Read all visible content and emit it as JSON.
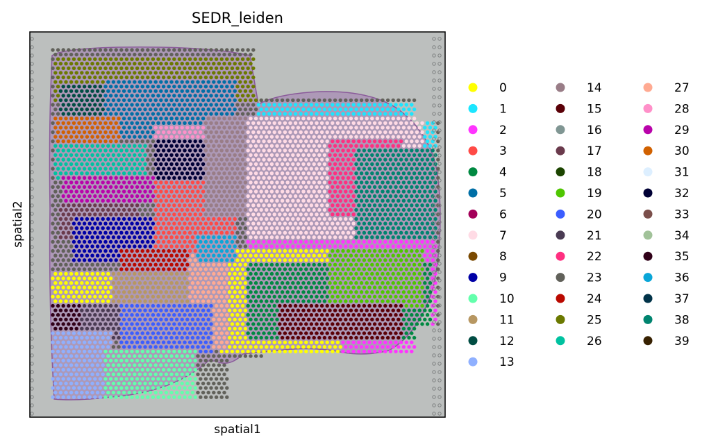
{
  "chart_data": {
    "type": "scatter",
    "title": "SEDR_leiden",
    "xlabel": "spatial1",
    "ylabel": "spatial2",
    "xticks": [],
    "yticks": [],
    "legend_position": "right",
    "background": "H&E tissue section image (grey slide with purple-stained tissue)",
    "categories": [
      {
        "label": "0",
        "color": "#ffff00"
      },
      {
        "label": "1",
        "color": "#1ce6ff"
      },
      {
        "label": "2",
        "color": "#ff34ff"
      },
      {
        "label": "3",
        "color": "#ff4a46"
      },
      {
        "label": "4",
        "color": "#008941"
      },
      {
        "label": "5",
        "color": "#006fa6"
      },
      {
        "label": "6",
        "color": "#a30059"
      },
      {
        "label": "7",
        "color": "#ffdbe5"
      },
      {
        "label": "8",
        "color": "#7a4900"
      },
      {
        "label": "9",
        "color": "#0000a6"
      },
      {
        "label": "10",
        "color": "#63ffac"
      },
      {
        "label": "11",
        "color": "#b79762"
      },
      {
        "label": "12",
        "color": "#004d43"
      },
      {
        "label": "13",
        "color": "#8fb0ff"
      },
      {
        "label": "14",
        "color": "#997d87"
      },
      {
        "label": "15",
        "color": "#5a0007"
      },
      {
        "label": "16",
        "color": "#809693"
      },
      {
        "label": "17",
        "color": "#6a3a4c"
      },
      {
        "label": "18",
        "color": "#1b4400"
      },
      {
        "label": "19",
        "color": "#4fc601"
      },
      {
        "label": "20",
        "color": "#3b5dff"
      },
      {
        "label": "21",
        "color": "#4a3b53"
      },
      {
        "label": "22",
        "color": "#ff2f80"
      },
      {
        "label": "23",
        "color": "#61615a"
      },
      {
        "label": "24",
        "color": "#ba0900"
      },
      {
        "label": "25",
        "color": "#6b7900"
      },
      {
        "label": "26",
        "color": "#00c2a0"
      },
      {
        "label": "27",
        "color": "#ffaa92"
      },
      {
        "label": "28",
        "color": "#ff90c9"
      },
      {
        "label": "29",
        "color": "#b903aa"
      },
      {
        "label": "30",
        "color": "#d16100"
      },
      {
        "label": "31",
        "color": "#ddefff"
      },
      {
        "label": "32",
        "color": "#000035"
      },
      {
        "label": "33",
        "color": "#7b4f4b"
      },
      {
        "label": "34",
        "color": "#a1c299"
      },
      {
        "label": "35",
        "color": "#300018"
      },
      {
        "label": "36",
        "color": "#0aa6d8"
      },
      {
        "label": "37",
        "color": "#013349"
      },
      {
        "label": "38",
        "color": "#00846f"
      },
      {
        "label": "39",
        "color": "#372101"
      }
    ],
    "regions": [
      {
        "cluster": "25",
        "x": [
          0.06,
          0.55
        ],
        "y": [
          0.82,
          0.93
        ]
      },
      {
        "cluster": "5",
        "x": [
          0.18,
          0.5
        ],
        "y": [
          0.72,
          0.88
        ]
      },
      {
        "cluster": "12",
        "x": [
          0.07,
          0.18
        ],
        "y": [
          0.74,
          0.86
        ]
      },
      {
        "cluster": "30",
        "x": [
          0.06,
          0.22
        ],
        "y": [
          0.7,
          0.78
        ]
      },
      {
        "cluster": "26",
        "x": [
          0.06,
          0.28
        ],
        "y": [
          0.62,
          0.71
        ]
      },
      {
        "cluster": "28",
        "x": [
          0.3,
          0.42
        ],
        "y": [
          0.62,
          0.76
        ]
      },
      {
        "cluster": "32",
        "x": [
          0.3,
          0.55
        ],
        "y": [
          0.56,
          0.72
        ]
      },
      {
        "cluster": "29",
        "x": [
          0.08,
          0.3
        ],
        "y": [
          0.55,
          0.63
        ]
      },
      {
        "cluster": "17",
        "x": [
          0.07,
          0.26
        ],
        "y": [
          0.46,
          0.56
        ]
      },
      {
        "cluster": "9",
        "x": [
          0.1,
          0.34
        ],
        "y": [
          0.4,
          0.52
        ]
      },
      {
        "cluster": "3",
        "x": [
          0.3,
          0.5
        ],
        "y": [
          0.36,
          0.62
        ]
      },
      {
        "cluster": "24",
        "x": [
          0.22,
          0.38
        ],
        "y": [
          0.34,
          0.44
        ]
      },
      {
        "cluster": "14",
        "x": [
          0.42,
          0.58
        ],
        "y": [
          0.52,
          0.78
        ]
      },
      {
        "cluster": "6",
        "x": [
          0.58,
          0.82
        ],
        "y": [
          0.5,
          0.82
        ]
      },
      {
        "cluster": "1",
        "x": [
          0.55,
          0.98
        ],
        "y": [
          0.44,
          0.82
        ]
      },
      {
        "cluster": "7",
        "x": [
          0.52,
          0.95
        ],
        "y": [
          0.4,
          0.78
        ]
      },
      {
        "cluster": "22",
        "x": [
          0.72,
          0.9
        ],
        "y": [
          0.52,
          0.72
        ]
      },
      {
        "cluster": "38",
        "x": [
          0.78,
          0.98
        ],
        "y": [
          0.45,
          0.7
        ]
      },
      {
        "cluster": "2",
        "x": [
          0.52,
          0.98
        ],
        "y": [
          0.16,
          0.46
        ]
      },
      {
        "cluster": "0",
        "x": [
          0.45,
          0.75
        ],
        "y": [
          0.16,
          0.44
        ]
      },
      {
        "cluster": "4",
        "x": [
          0.52,
          0.97
        ],
        "y": [
          0.2,
          0.4
        ]
      },
      {
        "cluster": "19",
        "x": [
          0.72,
          0.95
        ],
        "y": [
          0.28,
          0.44
        ]
      },
      {
        "cluster": "15",
        "x": [
          0.6,
          0.9
        ],
        "y": [
          0.2,
          0.3
        ]
      },
      {
        "cluster": "0",
        "x": [
          0.05,
          0.2
        ],
        "y": [
          0.3,
          0.38
        ]
      },
      {
        "cluster": "35",
        "x": [
          0.05,
          0.14
        ],
        "y": [
          0.2,
          0.3
        ]
      },
      {
        "cluster": "11",
        "x": [
          0.2,
          0.42
        ],
        "y": [
          0.26,
          0.38
        ]
      },
      {
        "cluster": "27",
        "x": [
          0.38,
          0.48
        ],
        "y": [
          0.18,
          0.42
        ]
      },
      {
        "cluster": "36",
        "x": [
          0.4,
          0.5
        ],
        "y": [
          0.4,
          0.47
        ]
      },
      {
        "cluster": "21",
        "x": [
          0.12,
          0.24
        ],
        "y": [
          0.2,
          0.3
        ]
      },
      {
        "cluster": "20",
        "x": [
          0.22,
          0.44
        ],
        "y": [
          0.16,
          0.3
        ]
      },
      {
        "cluster": "13",
        "x": [
          0.05,
          0.2
        ],
        "y": [
          0.04,
          0.22
        ]
      },
      {
        "cluster": "10",
        "x": [
          0.18,
          0.4
        ],
        "y": [
          0.04,
          0.18
        ]
      }
    ]
  }
}
